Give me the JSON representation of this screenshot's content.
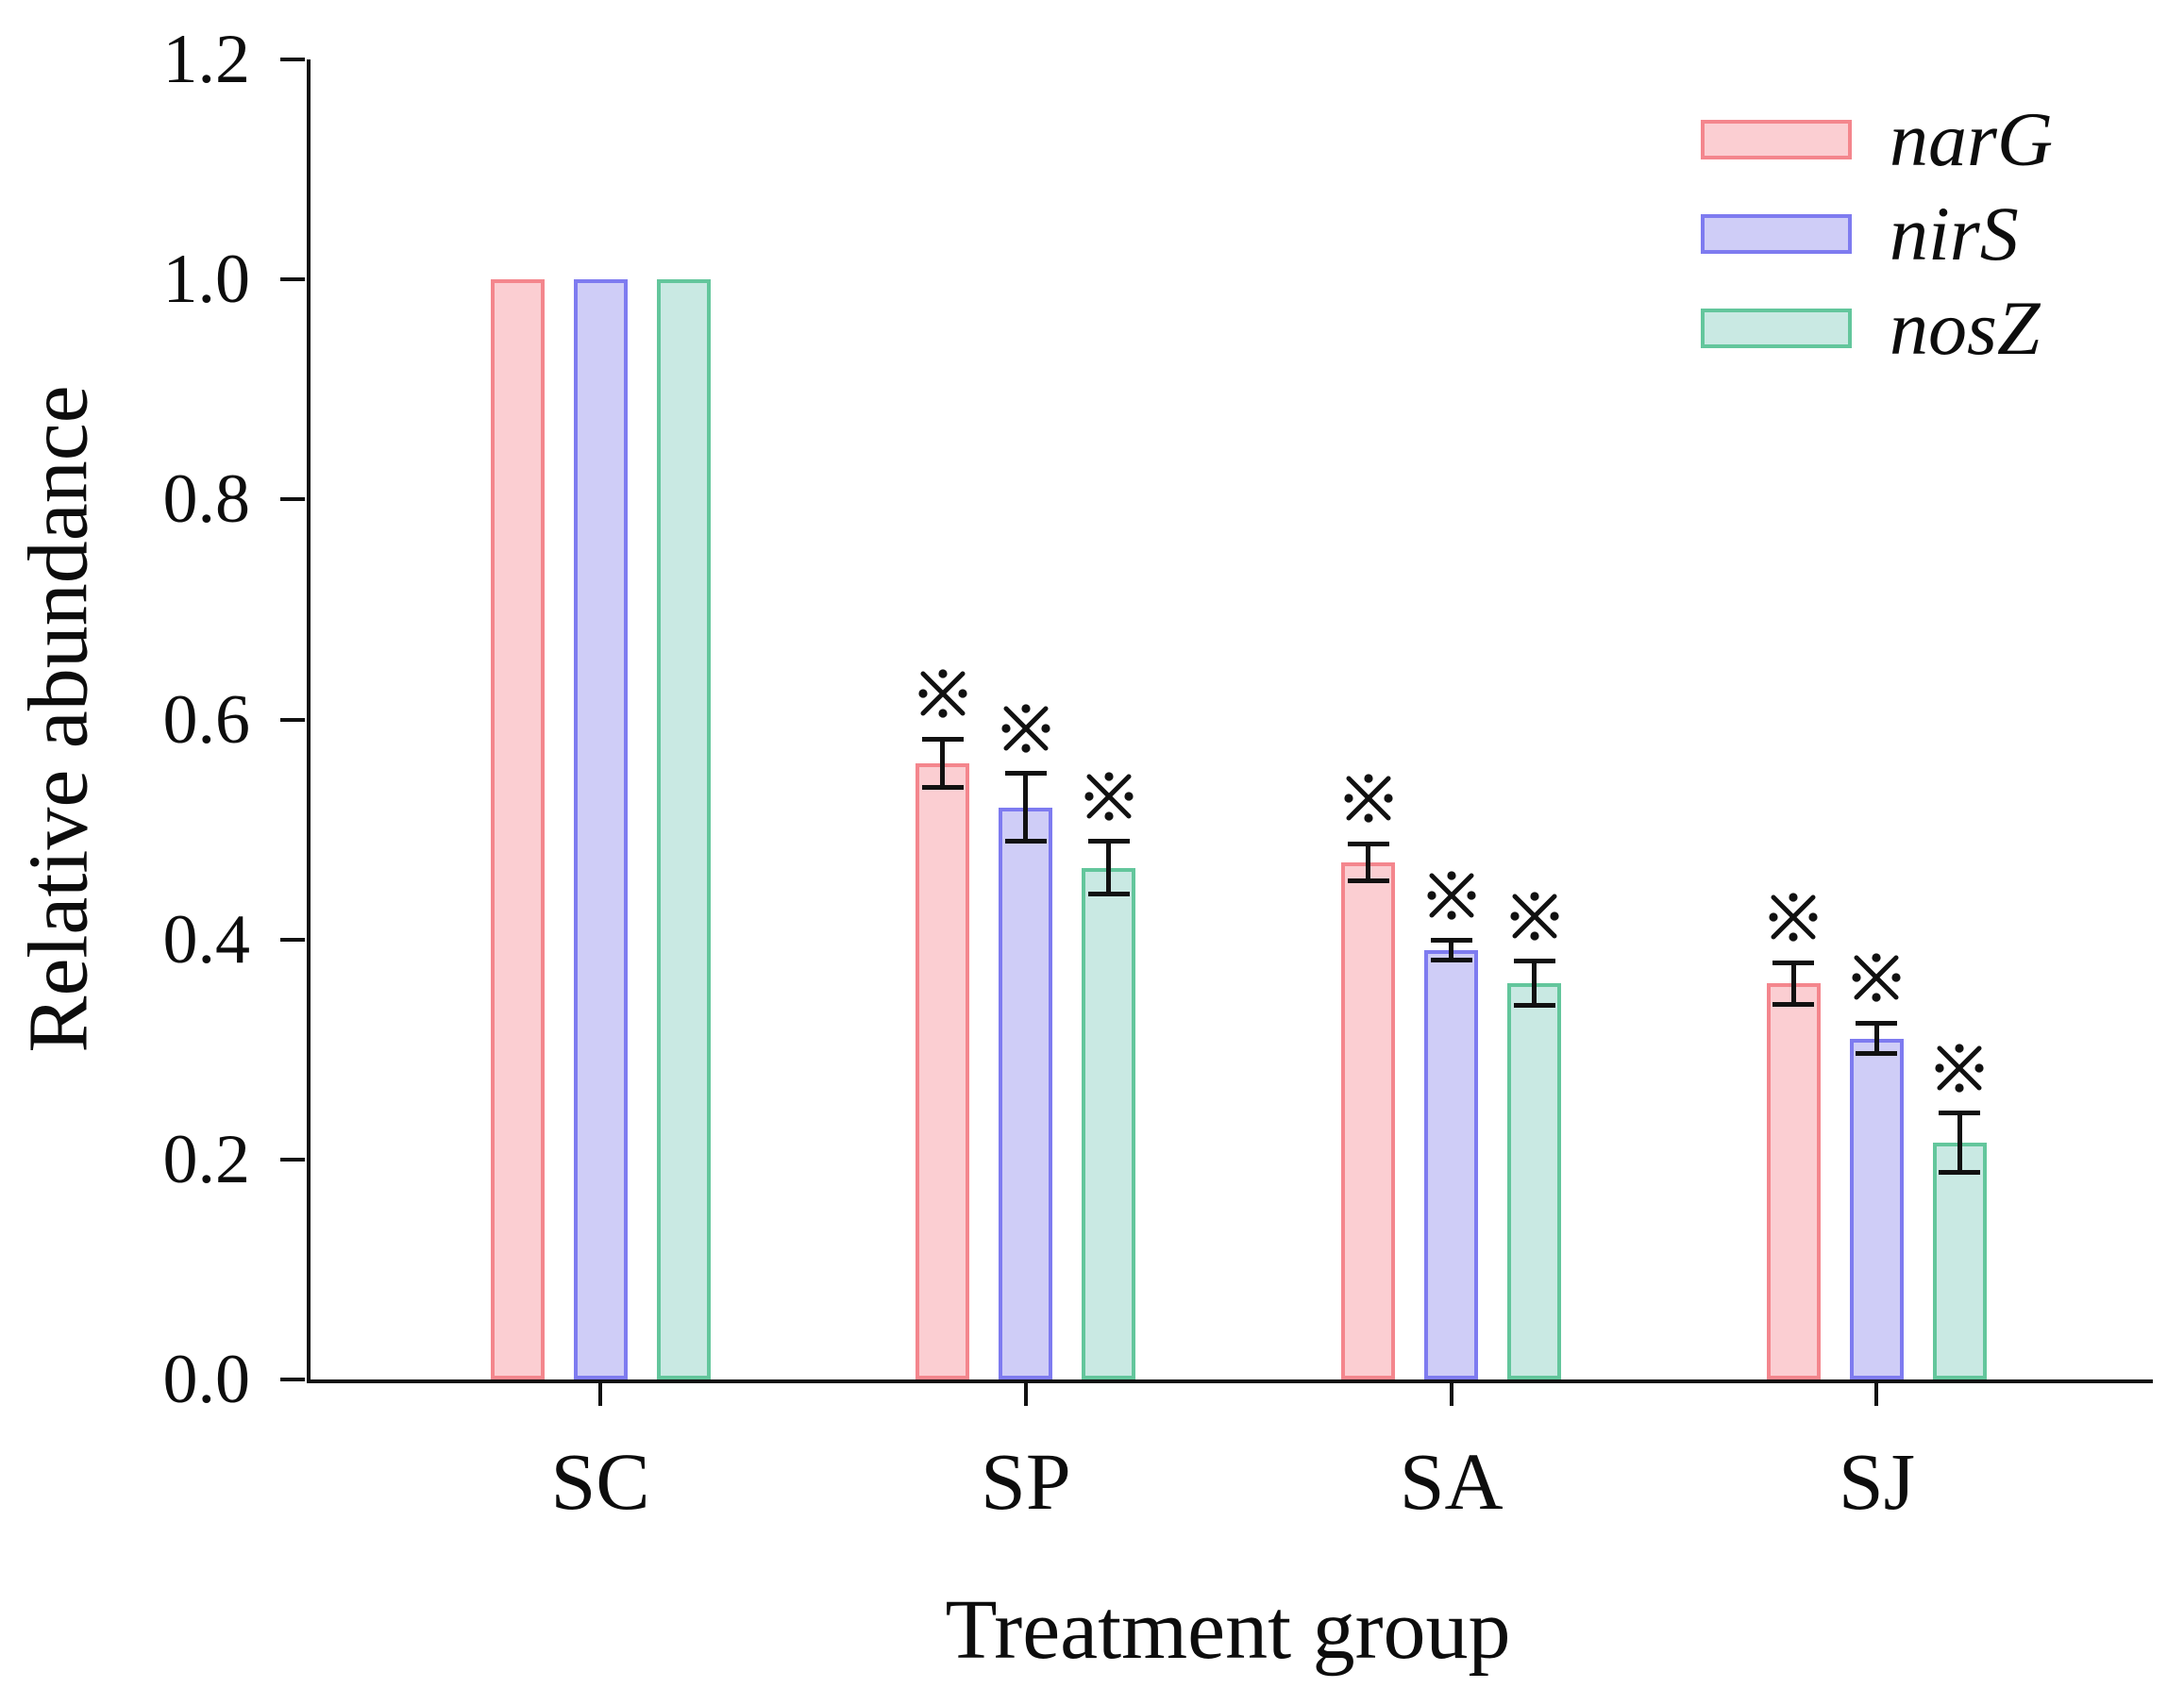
{
  "figure": {
    "ylabel": "Relative abundance",
    "xlabel": "Treatment group",
    "annotation_symbol": "※",
    "annotation_meaning": "significance mark shown above SP, SA and SJ bars"
  },
  "chart_data": {
    "type": "bar",
    "title": "",
    "xlabel": "Treatment group",
    "ylabel": "Relative abundance",
    "categories": [
      "SC",
      "SP",
      "SA",
      "SJ"
    ],
    "x_positions": [
      1,
      2,
      3,
      4
    ],
    "xlim": [
      0.31,
      4.64
    ],
    "ylim": [
      0,
      1.2
    ],
    "yticks": [
      0.0,
      0.2,
      0.4,
      0.6,
      0.8,
      1.0,
      1.2
    ],
    "grid": false,
    "legend_position": "top-right",
    "series": [
      {
        "name": "narG",
        "fill": "#FBCED2",
        "edge": "#F4868D",
        "values": [
          1.0,
          0.56,
          0.47,
          0.36
        ],
        "errors": [
          0,
          0.022,
          0.017,
          0.019
        ],
        "significant": [
          false,
          true,
          true,
          true
        ]
      },
      {
        "name": "nirS",
        "fill": "#CFCDF7",
        "edge": "#7E7BF0",
        "values": [
          1.0,
          0.52,
          0.39,
          0.31
        ],
        "errors": [
          0,
          0.031,
          0.009,
          0.014
        ],
        "significant": [
          false,
          true,
          true,
          true
        ]
      },
      {
        "name": "nosZ",
        "fill": "#C9E9E3",
        "edge": "#63C69C",
        "values": [
          1.0,
          0.465,
          0.36,
          0.215
        ],
        "errors": [
          0,
          0.024,
          0.02,
          0.027
        ],
        "significant": [
          false,
          true,
          true,
          true
        ]
      }
    ]
  }
}
